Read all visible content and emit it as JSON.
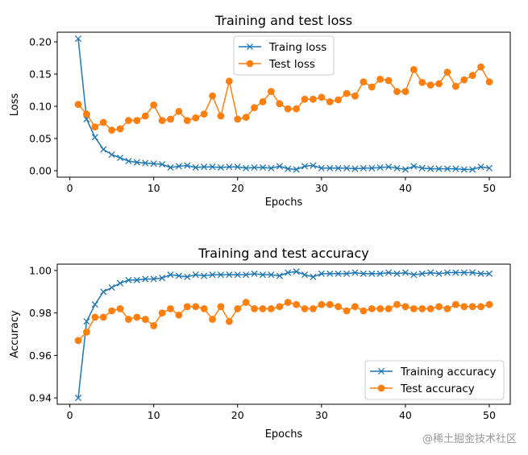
{
  "watermark": "@稀土掘金技术社区",
  "colors": {
    "train": "#1f77b4",
    "test": "#ff7f0e"
  },
  "chart_data": [
    {
      "type": "line",
      "title": "Training and test loss",
      "xlabel": "Epochs",
      "ylabel": "Loss",
      "xlim": [
        -1.5,
        52.5
      ],
      "ylim": [
        -0.01,
        0.215
      ],
      "xticks": [
        0,
        10,
        20,
        30,
        40,
        50
      ],
      "yticks": [
        0.0,
        0.05,
        0.1,
        0.15,
        0.2
      ],
      "ytick_labels": [
        "0.00",
        "0.05",
        "0.10",
        "0.15",
        "0.20"
      ],
      "legend_position": "upper-center",
      "x": [
        1,
        2,
        3,
        4,
        5,
        6,
        7,
        8,
        9,
        10,
        11,
        12,
        13,
        14,
        15,
        16,
        17,
        18,
        19,
        20,
        21,
        22,
        23,
        24,
        25,
        26,
        27,
        28,
        29,
        30,
        31,
        32,
        33,
        34,
        35,
        36,
        37,
        38,
        39,
        40,
        41,
        42,
        43,
        44,
        45,
        46,
        47,
        48,
        49,
        50
      ],
      "series": [
        {
          "name": "Traing loss",
          "marker": "x",
          "color_key": "train",
          "values": [
            0.205,
            0.08,
            0.052,
            0.033,
            0.025,
            0.02,
            0.015,
            0.013,
            0.012,
            0.011,
            0.01,
            0.005,
            0.007,
            0.008,
            0.005,
            0.006,
            0.006,
            0.005,
            0.006,
            0.006,
            0.004,
            0.005,
            0.005,
            0.004,
            0.007,
            0.003,
            0.002,
            0.007,
            0.008,
            0.004,
            0.004,
            0.004,
            0.004,
            0.003,
            0.004,
            0.004,
            0.005,
            0.006,
            0.004,
            0.002,
            0.007,
            0.004,
            0.003,
            0.003,
            0.003,
            0.003,
            0.002,
            0.002,
            0.006,
            0.004
          ]
        },
        {
          "name": "Test loss",
          "marker": "o",
          "color_key": "test",
          "values": [
            0.103,
            0.088,
            0.068,
            0.075,
            0.063,
            0.065,
            0.078,
            0.078,
            0.085,
            0.102,
            0.078,
            0.08,
            0.092,
            0.078,
            0.082,
            0.088,
            0.116,
            0.085,
            0.139,
            0.08,
            0.083,
            0.098,
            0.107,
            0.123,
            0.104,
            0.096,
            0.096,
            0.111,
            0.111,
            0.114,
            0.107,
            0.11,
            0.12,
            0.116,
            0.138,
            0.13,
            0.142,
            0.14,
            0.123,
            0.123,
            0.157,
            0.137,
            0.133,
            0.135,
            0.153,
            0.131,
            0.141,
            0.148,
            0.161,
            0.138
          ]
        }
      ]
    },
    {
      "type": "line",
      "title": "Training and test accuracy",
      "xlabel": "Epochs",
      "ylabel": "Accuracy",
      "xlim": [
        -1.5,
        52.5
      ],
      "ylim": [
        0.937,
        1.003
      ],
      "xticks": [
        0,
        10,
        20,
        30,
        40,
        50
      ],
      "yticks": [
        0.94,
        0.96,
        0.98,
        1.0
      ],
      "ytick_labels": [
        "0.94",
        "0.96",
        "0.98",
        "1.00"
      ],
      "legend_position": "lower-right",
      "x": [
        1,
        2,
        3,
        4,
        5,
        6,
        7,
        8,
        9,
        10,
        11,
        12,
        13,
        14,
        15,
        16,
        17,
        18,
        19,
        20,
        21,
        22,
        23,
        24,
        25,
        26,
        27,
        28,
        29,
        30,
        31,
        32,
        33,
        34,
        35,
        36,
        37,
        38,
        39,
        40,
        41,
        42,
        43,
        44,
        45,
        46,
        47,
        48,
        49,
        50
      ],
      "series": [
        {
          "name": "Training accuracy",
          "marker": "x",
          "color_key": "train",
          "values": [
            0.94,
            0.976,
            0.984,
            0.99,
            0.992,
            0.994,
            0.9955,
            0.9955,
            0.996,
            0.996,
            0.9965,
            0.998,
            0.9975,
            0.997,
            0.998,
            0.9975,
            0.998,
            0.998,
            0.998,
            0.998,
            0.998,
            0.9985,
            0.998,
            0.998,
            0.9975,
            0.999,
            0.9995,
            0.998,
            0.997,
            0.9985,
            0.9985,
            0.9985,
            0.9985,
            0.999,
            0.9985,
            0.9985,
            0.9985,
            0.999,
            0.9985,
            0.999,
            0.998,
            0.9985,
            0.999,
            0.9985,
            0.999,
            0.999,
            0.999,
            0.999,
            0.9985,
            0.9985
          ]
        },
        {
          "name": "Test accuracy",
          "marker": "o",
          "color_key": "test",
          "values": [
            0.967,
            0.971,
            0.978,
            0.978,
            0.981,
            0.982,
            0.977,
            0.978,
            0.977,
            0.974,
            0.98,
            0.982,
            0.979,
            0.983,
            0.983,
            0.982,
            0.977,
            0.983,
            0.976,
            0.982,
            0.985,
            0.982,
            0.982,
            0.982,
            0.983,
            0.985,
            0.984,
            0.982,
            0.982,
            0.984,
            0.984,
            0.983,
            0.981,
            0.983,
            0.981,
            0.982,
            0.982,
            0.982,
            0.984,
            0.983,
            0.982,
            0.982,
            0.982,
            0.983,
            0.982,
            0.984,
            0.983,
            0.983,
            0.983,
            0.984
          ]
        }
      ]
    }
  ]
}
